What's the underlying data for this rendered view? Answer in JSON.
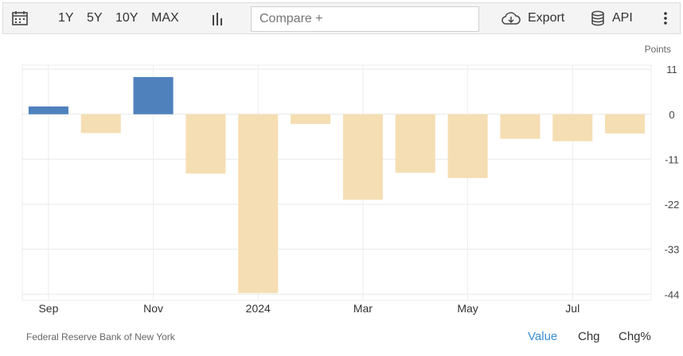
{
  "toolbar": {
    "ranges": [
      "1Y",
      "5Y",
      "10Y",
      "MAX"
    ],
    "compare_placeholder": "Compare +",
    "export_label": "Export",
    "api_label": "API"
  },
  "footer": {
    "source": "Federal Reserve Bank of New York",
    "tabs": [
      "Value",
      "Chg",
      "Chg%"
    ],
    "active_tab": "Value"
  },
  "colors": {
    "positive": "#4f81bd",
    "negative": "#f5deb3",
    "accent": "#3a8fd6"
  },
  "chart_data": {
    "type": "bar",
    "unit_label": "Points",
    "categories": [
      "2023-09",
      "2023-10",
      "2023-11",
      "2023-12",
      "2024-01",
      "2024-02",
      "2024-03",
      "2024-04",
      "2024-05",
      "2024-06",
      "2024-07",
      "2024-08"
    ],
    "values": [
      1.9,
      -4.6,
      9.1,
      -14.5,
      -43.7,
      -2.4,
      -20.9,
      -14.3,
      -15.6,
      -6.0,
      -6.6,
      -4.7
    ],
    "xticks": [
      {
        "label": "Sep",
        "index": 0
      },
      {
        "label": "Nov",
        "index": 2
      },
      {
        "label": "2024",
        "index": 4
      },
      {
        "label": "Mar",
        "index": 6
      },
      {
        "label": "May",
        "index": 8
      },
      {
        "label": "Jul",
        "index": 10
      }
    ],
    "yticks": [
      11,
      0,
      -11,
      -22,
      -33,
      -44
    ],
    "ylim": [
      -45.5,
      12
    ],
    "axis_side": "right",
    "grid": true
  }
}
